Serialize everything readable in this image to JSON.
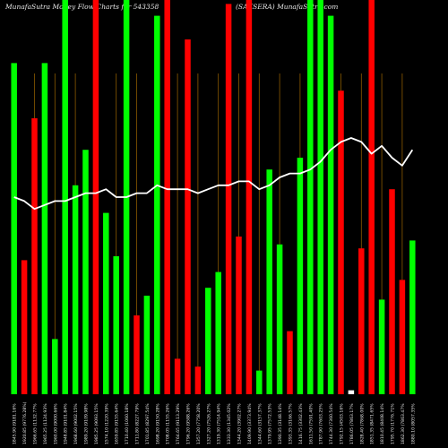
{
  "header": {
    "left": "MunafaSutra  Money Flow  Charts for 543358",
    "right": "(SAKSERA) MunafaSutra.com"
  },
  "colors": {
    "background": "#000000",
    "up_bar": "#00ff00",
    "down_bar": "#ff0000",
    "line": "#ffffff",
    "gridline": "#8b5a00",
    "text": "#e8e8e8"
  },
  "chart_data": {
    "type": "bar",
    "value_scale": [
      0,
      100
    ],
    "bars": [
      {
        "label": "1845.90 (9181.16%",
        "value": 84,
        "color": "green",
        "grid": true
      },
      {
        "label": "1920.85 (9776.28%)",
        "value": 34,
        "color": "red",
        "grid": false
      },
      {
        "label": "1966.65 (1132.77%",
        "value": 70,
        "color": "red",
        "grid": true
      },
      {
        "label": "1965.25 (1124.93%",
        "value": 84,
        "color": "green",
        "grid": false
      },
      {
        "label": "1960.00 (9000.66%",
        "value": 14,
        "color": "green",
        "grid": true
      },
      {
        "label": "1948.85 (9101.84%",
        "value": 100,
        "color": "green",
        "grid": false
      },
      {
        "label": "1968.60 (9002.15%",
        "value": 53,
        "color": "green",
        "grid": true
      },
      {
        "label": "1989.20 (9109.98%",
        "value": 62,
        "color": "green",
        "grid": false
      },
      {
        "label": "1985.25 (9093.15%",
        "value": 100,
        "color": "red",
        "grid": true
      },
      {
        "label": "1574.10 (1220.39%",
        "value": 46,
        "color": "green",
        "grid": false
      },
      {
        "label": "1659.85 (9155.64%",
        "value": 35,
        "color": "green",
        "grid": true
      },
      {
        "label": "1710.40 (1060.18%",
        "value": 100,
        "color": "green",
        "grid": false
      },
      {
        "label": "1711.80 (8227.79%",
        "value": 20,
        "color": "red",
        "grid": true
      },
      {
        "label": "1701.85 (8297.54%",
        "value": 25,
        "color": "green",
        "grid": false
      },
      {
        "label": "1698.20 (9150.28%",
        "value": 96,
        "color": "green",
        "grid": true
      },
      {
        "label": "1708.05 (1155.26%",
        "value": 100,
        "color": "red",
        "grid": false
      },
      {
        "label": "1764.65 (9113.29%",
        "value": 9,
        "color": "red",
        "grid": true
      },
      {
        "label": "1796.20 (9588.26%",
        "value": 90,
        "color": "red",
        "grid": false
      },
      {
        "label": "1357.20 (7758.20%",
        "value": 7,
        "color": "red",
        "grid": true
      },
      {
        "label": "1327.20 (7526.27%",
        "value": 27,
        "color": "green",
        "grid": false
      },
      {
        "label": "1319.30 (7514.94%",
        "value": 31,
        "color": "green",
        "grid": true
      },
      {
        "label": "1333.30 (1345.02%",
        "value": 99,
        "color": "red",
        "grid": false
      },
      {
        "label": "1344.20 (3902.27%",
        "value": 40,
        "color": "red",
        "grid": true
      },
      {
        "label": "1409.90 (3373.94%",
        "value": 100,
        "color": "red",
        "grid": false
      },
      {
        "label": "1344.60 (3157.37%",
        "value": 6,
        "color": "green",
        "grid": true
      },
      {
        "label": "1379.95 (7572.53%",
        "value": 57,
        "color": "green",
        "grid": false
      },
      {
        "label": "1390.35 (3148.14%",
        "value": 38,
        "color": "green",
        "grid": true
      },
      {
        "label": "1393.35 (3166.57%",
        "value": 16,
        "color": "red",
        "grid": false
      },
      {
        "label": "1416.75 (3302.43%",
        "value": 60,
        "color": "green",
        "grid": true
      },
      {
        "label": "1611.50 (7591.40%",
        "value": 100,
        "color": "green",
        "grid": false
      },
      {
        "label": "1787.90 (7603.25%",
        "value": 100,
        "color": "green",
        "grid": true
      },
      {
        "label": "1744.30 (7360.54%",
        "value": 96,
        "color": "green",
        "grid": false
      },
      {
        "label": "1792.15 (4503.16%",
        "value": 77,
        "color": "red",
        "grid": true
      },
      {
        "label": "1786.05 (7863.17%",
        "value": 1,
        "color": "white",
        "grid": false
      },
      {
        "label": "1828.40 (7868.00%",
        "value": 37,
        "color": "red",
        "grid": true
      },
      {
        "label": "1851.35 (8471.65%",
        "value": 100,
        "color": "red",
        "grid": false
      },
      {
        "label": "1810.45 (8408.14%",
        "value": 24,
        "color": "green",
        "grid": true
      },
      {
        "label": "1795.70 (1776.71%",
        "value": 52,
        "color": "red",
        "grid": false
      },
      {
        "label": "1862.30 (7863.47%",
        "value": 29,
        "color": "red",
        "grid": true
      },
      {
        "label": "1880.10 (8057.35%",
        "value": 39,
        "color": "green",
        "grid": false
      }
    ],
    "line": [
      56,
      55,
      53,
      54,
      55,
      55,
      56,
      57,
      57,
      58,
      56,
      56,
      57,
      56,
      58,
      57,
      57,
      59,
      58,
      59,
      59,
      60,
      60,
      60,
      61,
      61,
      61,
      62,
      62,
      62,
      63,
      63,
      63,
      64,
      64,
      64,
      65,
      65,
      66,
      66
    ],
    "line_series": [
      50,
      49,
      47,
      48,
      49,
      49,
      50,
      51,
      51,
      52,
      50,
      50,
      51,
      51,
      53,
      52,
      52,
      52,
      51,
      52,
      53,
      53,
      54,
      54,
      52,
      53,
      55,
      56,
      56,
      57,
      59,
      62,
      64,
      65,
      64,
      61,
      63,
      60,
      58,
      62
    ]
  }
}
